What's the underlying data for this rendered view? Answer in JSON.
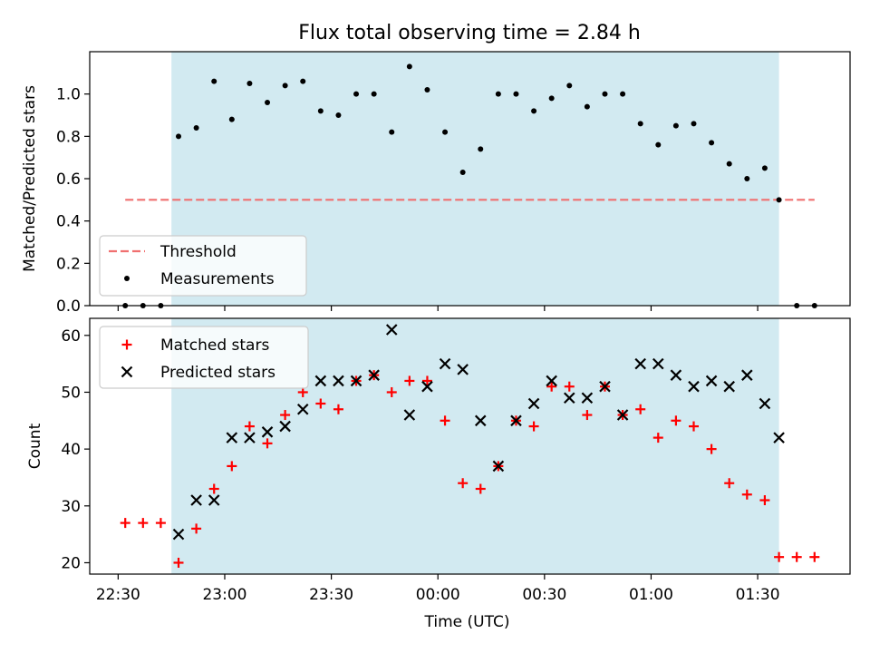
{
  "chart_data": [
    {
      "type": "scatter",
      "title": "Flux total observing time = 2.84 h",
      "ylabel": "Matched/Predicted stars",
      "xlabel": "",
      "xlim": [
        "22:22",
        "01:56"
      ],
      "ylim": [
        0,
        1.2
      ],
      "yticks": [
        "0.0",
        "0.2",
        "0.4",
        "0.6",
        "0.8",
        "1.0"
      ],
      "yticks_values": [
        0,
        0.2,
        0.4,
        0.6,
        0.8,
        1.0
      ],
      "shaded_interval": [
        "22:45",
        "01:36"
      ],
      "shade_color": "#add8e6",
      "threshold": {
        "name": "Threshold",
        "value": 0.5,
        "x_start": "22:32",
        "x_end": "01:46",
        "color": "#f07070"
      },
      "series": [
        {
          "name": "Measurements",
          "marker": "dot",
          "color": "#000000",
          "x": [
            "22:32",
            "22:37",
            "22:42",
            "22:47",
            "22:52",
            "22:57",
            "23:02",
            "23:07",
            "23:12",
            "23:17",
            "23:22",
            "23:27",
            "23:32",
            "23:37",
            "23:42",
            "23:47",
            "23:52",
            "23:57",
            "00:02",
            "00:07",
            "00:12",
            "00:17",
            "00:22",
            "00:27",
            "00:32",
            "00:37",
            "00:42",
            "00:47",
            "00:52",
            "00:57",
            "01:02",
            "01:07",
            "01:12",
            "01:17",
            "01:22",
            "01:27",
            "01:32",
            "01:36",
            "01:41",
            "01:46"
          ],
          "y": [
            0,
            0,
            0,
            0.8,
            0.84,
            1.06,
            0.88,
            1.05,
            0.96,
            1.04,
            1.06,
            0.92,
            0.9,
            1.0,
            1.0,
            0.82,
            1.13,
            1.02,
            0.82,
            0.63,
            0.74,
            1.0,
            1.0,
            0.92,
            0.98,
            1.04,
            0.94,
            1.0,
            1.0,
            0.86,
            0.76,
            0.85,
            0.86,
            0.77,
            0.67,
            0.6,
            0.65,
            0.5,
            0,
            0
          ]
        }
      ],
      "legend": {
        "position": "lower-left",
        "entries": [
          "Threshold",
          "Measurements"
        ]
      }
    },
    {
      "type": "scatter",
      "title": "",
      "ylabel": "Count",
      "xlabel": "Time (UTC)",
      "xlim": [
        "22:22",
        "01:56"
      ],
      "ylim": [
        18,
        63
      ],
      "yticks": [
        "20",
        "30",
        "40",
        "50",
        "60"
      ],
      "yticks_values": [
        20,
        30,
        40,
        50,
        60
      ],
      "xticks": [
        "22:30",
        "23:00",
        "23:30",
        "00:00",
        "00:30",
        "01:00",
        "01:30"
      ],
      "xticks_values": [
        "22:30",
        "23:00",
        "23:30",
        "00:00",
        "00:30",
        "01:00",
        "01:30"
      ],
      "shaded_interval": [
        "22:45",
        "01:36"
      ],
      "shade_color": "#add8e6",
      "series": [
        {
          "name": "Matched stars",
          "marker": "plus",
          "color": "#ff0000",
          "x": [
            "22:32",
            "22:37",
            "22:42",
            "22:47",
            "22:52",
            "22:57",
            "23:02",
            "23:07",
            "23:12",
            "23:17",
            "23:22",
            "23:27",
            "23:32",
            "23:37",
            "23:42",
            "23:47",
            "23:52",
            "23:57",
            "00:02",
            "00:07",
            "00:12",
            "00:17",
            "00:22",
            "00:27",
            "00:32",
            "00:37",
            "00:42",
            "00:47",
            "00:52",
            "00:57",
            "01:02",
            "01:07",
            "01:12",
            "01:17",
            "01:22",
            "01:27",
            "01:32",
            "01:36",
            "01:41",
            "01:46"
          ],
          "y": [
            27,
            27,
            27,
            20,
            26,
            33,
            37,
            44,
            41,
            46,
            50,
            48,
            47,
            52,
            53,
            50,
            52,
            52,
            45,
            34,
            33,
            37,
            45,
            44,
            51,
            51,
            46,
            51,
            46,
            47,
            42,
            45,
            44,
            40,
            34,
            32,
            31,
            21,
            21,
            21
          ]
        },
        {
          "name": "Predicted stars",
          "marker": "x",
          "color": "#000000",
          "x": [
            "22:47",
            "22:52",
            "22:57",
            "23:02",
            "23:07",
            "23:12",
            "23:17",
            "23:22",
            "23:27",
            "23:32",
            "23:37",
            "23:42",
            "23:47",
            "23:52",
            "23:57",
            "00:02",
            "00:07",
            "00:12",
            "00:17",
            "00:22",
            "00:27",
            "00:32",
            "00:37",
            "00:42",
            "00:47",
            "00:52",
            "00:57",
            "01:02",
            "01:07",
            "01:12",
            "01:17",
            "01:22",
            "01:27",
            "01:32",
            "01:36"
          ],
          "y": [
            25,
            31,
            31,
            42,
            42,
            43,
            44,
            47,
            52,
            52,
            52,
            53,
            61,
            46,
            51,
            55,
            54,
            45,
            37,
            45,
            48,
            52,
            49,
            49,
            51,
            46,
            55,
            55,
            53,
            51,
            52,
            51,
            53,
            48,
            42
          ]
        }
      ],
      "legend": {
        "position": "upper-left",
        "entries": [
          "Matched stars",
          "Predicted stars"
        ]
      }
    }
  ]
}
